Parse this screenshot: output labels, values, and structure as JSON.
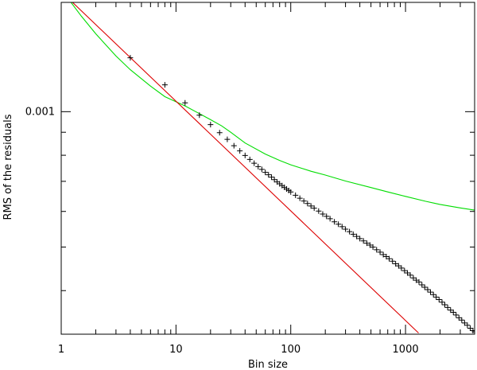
{
  "chart_data": {
    "type": "scatter",
    "title": "",
    "xlabel": "Bin size",
    "ylabel": "RMS of the residuals",
    "xscale": "log",
    "yscale": "log",
    "xlim": [
      1,
      4000
    ],
    "ylim": [
      0.00032,
      0.00175
    ],
    "grid": false,
    "legend": "none",
    "x_ticks": [
      {
        "value": 1,
        "label": "1"
      },
      {
        "value": 10,
        "label": "10"
      },
      {
        "value": 100,
        "label": "100"
      },
      {
        "value": 1000,
        "label": "1000"
      }
    ],
    "y_ticks": [
      {
        "value": 0.001,
        "label": "0.001"
      }
    ],
    "series": [
      {
        "kind": "line",
        "color": "#00dd00",
        "x": [
          1,
          1.5,
          2,
          3,
          4,
          6,
          8,
          12,
          16,
          20,
          25,
          30,
          40,
          60,
          80,
          100,
          150,
          200,
          300,
          500,
          700,
          1000,
          1500,
          2000,
          3000,
          4000
        ],
        "y": [
          0.00187,
          0.00163,
          0.00149,
          0.00133,
          0.00124,
          0.00114,
          0.00108,
          0.00103,
          0.00099,
          0.00096,
          0.00093,
          0.0009,
          0.000852,
          0.000805,
          0.000779,
          0.000762,
          0.000737,
          0.000723,
          0.000701,
          0.000678,
          0.000663,
          0.000648,
          0.000632,
          0.000622,
          0.000611,
          0.000604
        ]
      },
      {
        "kind": "line",
        "color": "#dd0000",
        "x": [
          1,
          1300
        ],
        "y": [
          0.00185,
          0.000322
        ]
      },
      {
        "kind": "points",
        "color": "#000000",
        "marker": "+",
        "x": [
          4,
          8,
          12,
          16,
          20,
          24,
          28,
          32,
          36,
          40,
          44,
          48,
          52,
          56,
          60,
          64,
          68,
          72,
          76,
          80,
          84,
          88,
          92,
          96,
          100,
          110,
          120,
          130,
          140,
          150,
          160,
          175,
          190,
          205,
          220,
          240,
          260,
          280,
          300,
          325,
          350,
          375,
          400,
          430,
          460,
          490,
          520,
          560,
          600,
          640,
          680,
          720,
          770,
          820,
          870,
          920,
          980,
          1040,
          1100,
          1170,
          1240,
          1310,
          1390,
          1470,
          1560,
          1650,
          1750,
          1850,
          1960,
          2080,
          2200,
          2330,
          2470,
          2610,
          2760,
          2920,
          3090,
          3270,
          3460,
          3660,
          3870,
          4000
        ],
        "y": [
          0.001318,
          0.001147,
          0.001046,
          0.000982,
          0.000936,
          0.000898,
          0.000868,
          0.00084,
          0.000818,
          0.000799,
          0.000783,
          0.000768,
          0.000755,
          0.000744,
          0.000733,
          0.000724,
          0.000715,
          0.000706,
          0.000698,
          0.000691,
          0.000685,
          0.000679,
          0.000673,
          0.000668,
          0.000663,
          0.000652,
          0.000642,
          0.000633,
          0.000625,
          0.000617,
          0.00061,
          0.000601,
          0.000592,
          0.000585,
          0.000578,
          0.000569,
          0.000562,
          0.000555,
          0.000548,
          0.000541,
          0.000534,
          0.000528,
          0.000522,
          0.000516,
          0.00051,
          0.000505,
          0.0005,
          0.000493,
          0.000487,
          0.000481,
          0.000476,
          0.000471,
          0.000465,
          0.000459,
          0.000454,
          0.000449,
          0.000443,
          0.000438,
          0.000433,
          0.000427,
          0.000422,
          0.000418,
          0.000412,
          0.000407,
          0.000402,
          0.000397,
          0.000392,
          0.000387,
          0.000382,
          0.000377,
          0.000372,
          0.000367,
          0.000362,
          0.000358,
          0.000353,
          0.000348,
          0.000344,
          0.000339,
          0.000335,
          0.00033,
          0.000326,
          0.000324
        ]
      }
    ]
  }
}
